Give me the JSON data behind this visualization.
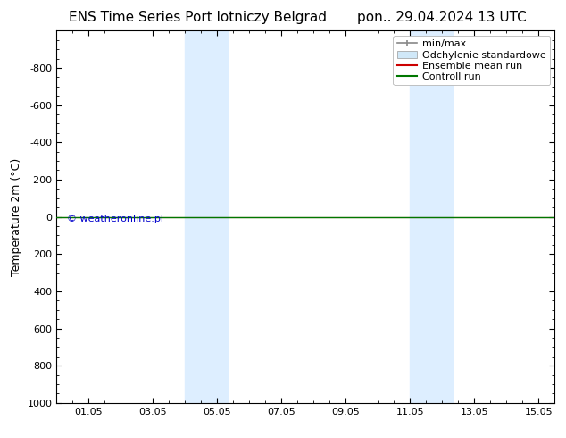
{
  "title_left": "ENS Time Series Port lotniczy Belgrad",
  "title_right": "pon.. 29.04.2024 13 UTC",
  "ylabel": "Temperature 2m (°C)",
  "watermark": "© weatheronline.pl",
  "watermark_color": "#0000cc",
  "background_color": "#ffffff",
  "plot_bg_color": "#ffffff",
  "shaded_regions": [
    {
      "xmin": 4.0,
      "xmax": 4.67,
      "color": "#ddeeff"
    },
    {
      "xmin": 4.67,
      "xmax": 5.33,
      "color": "#ddeeff"
    },
    {
      "xmin": 11.0,
      "xmax": 11.67,
      "color": "#ddeeff"
    },
    {
      "xmin": 11.67,
      "xmax": 12.33,
      "color": "#ddeeff"
    }
  ],
  "xlim": [
    0,
    15.5
  ],
  "ylim_top": -1000,
  "ylim_bottom": 1000,
  "yticks": [
    -800,
    -600,
    -400,
    -200,
    0,
    200,
    400,
    600,
    800,
    1000
  ],
  "xtick_positions": [
    1,
    3,
    5,
    7,
    9,
    11,
    13,
    15
  ],
  "xtick_labels": [
    "01.05",
    "03.05",
    "05.05",
    "07.05",
    "09.05",
    "11.05",
    "13.05",
    "15.05"
  ],
  "control_run_y": 0,
  "control_run_color": "#007700",
  "ensemble_mean_color": "#cc0000",
  "minmax_color": "#888888",
  "stddev_color": "#cccccc",
  "legend_labels": [
    "min/max",
    "Odchylenie standardowe",
    "Ensemble mean run",
    "Controll run"
  ],
  "font_size_title": 11,
  "font_size_axis": 9,
  "font_size_tick": 8,
  "font_size_legend": 8,
  "font_size_watermark": 8
}
